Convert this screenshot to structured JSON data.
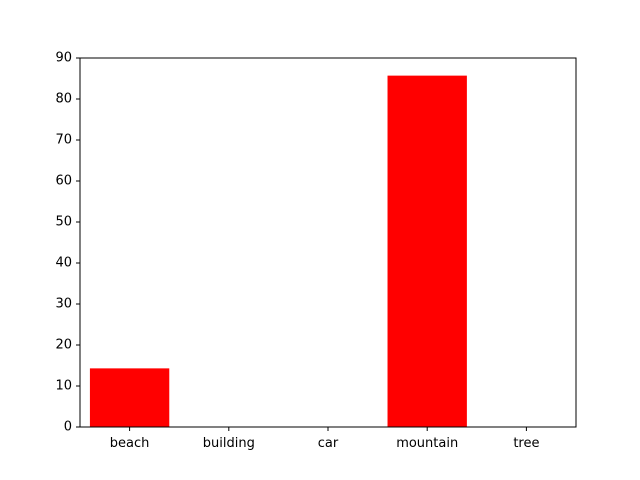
{
  "chart_data": {
    "type": "bar",
    "title": "",
    "xlabel": "",
    "ylabel": "",
    "categories": [
      "beach",
      "building",
      "car",
      "mountain",
      "tree"
    ],
    "values": [
      14.3,
      0,
      0,
      85.7,
      0
    ],
    "ylim": [
      0,
      90
    ],
    "yticks": [
      0,
      10,
      20,
      30,
      40,
      50,
      60,
      70,
      80,
      90
    ],
    "grid": false,
    "legend": "none",
    "bar_color": "#ff0000"
  }
}
